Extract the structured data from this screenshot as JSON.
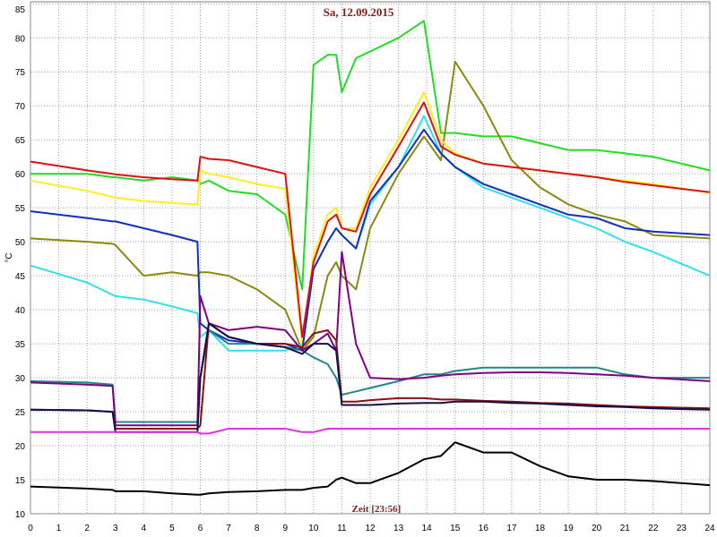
{
  "chart_data": {
    "type": "line",
    "title": "Sa, 12.09.2015",
    "ylabel": "°C",
    "xlabel": "Zeit [23:56]",
    "grid": true,
    "xlim": [
      0,
      24
    ],
    "xticks": [
      0,
      1,
      2,
      3,
      4,
      5,
      6,
      7,
      8,
      9,
      10,
      11,
      12,
      13,
      14,
      15,
      16,
      17,
      18,
      19,
      20,
      21,
      22,
      23,
      24
    ],
    "ylim": [
      10,
      85.3
    ],
    "yticks": [
      10,
      15,
      20,
      25,
      30,
      35,
      40,
      45,
      50,
      55,
      60,
      65,
      70,
      75,
      80,
      85
    ],
    "x": [
      0,
      2,
      2.9,
      3,
      4,
      5,
      5.9,
      6,
      6.3,
      7,
      8,
      9,
      9.6,
      10,
      10.5,
      10.8,
      11,
      11.5,
      12,
      13,
      13.9,
      14.5,
      15,
      16,
      17,
      18,
      19,
      20,
      21,
      22,
      24
    ],
    "series": [
      {
        "color": "#22dd22",
        "values": [
          60,
          60,
          59.5,
          59.5,
          59,
          59.5,
          59,
          58.5,
          59,
          57.5,
          57,
          54,
          43,
          76,
          77.5,
          77.5,
          72,
          77,
          78,
          80,
          82.5,
          66,
          66,
          65.5,
          65.5,
          64.5,
          63.5,
          63.5,
          63,
          62.5,
          60.5
        ]
      },
      {
        "color": "#8a8a10",
        "values": [
          50.5,
          50,
          49.7,
          49.5,
          45,
          45.5,
          45,
          45.5,
          45.5,
          45,
          43,
          40,
          34,
          36,
          45,
          47,
          45,
          43,
          52,
          60,
          65.5,
          62,
          76.5,
          70,
          62,
          58,
          55.5,
          54,
          53,
          51,
          50.5
        ]
      },
      {
        "color": "#30e0f0",
        "values": [
          46.5,
          44,
          42.2,
          42,
          41.5,
          40.5,
          39.5,
          36,
          37,
          34,
          34,
          34,
          35,
          46,
          50,
          52,
          51,
          49,
          55.5,
          61,
          68.5,
          63,
          61,
          58,
          56.5,
          55,
          53.5,
          52,
          50,
          48.5,
          45
        ]
      },
      {
        "color": "#ffee22",
        "values": [
          59,
          57.5,
          56.6,
          56.5,
          56,
          55.7,
          55.5,
          60.5,
          60,
          59.5,
          58.5,
          57.8,
          35,
          48,
          54,
          55,
          52,
          52,
          58,
          65,
          72,
          65,
          63,
          61.5,
          61,
          60.5,
          60,
          59.5,
          59,
          58.5,
          57.2
        ]
      },
      {
        "color": "#1030c0",
        "values": [
          54.5,
          53.5,
          53,
          53,
          52,
          51,
          50,
          38,
          37,
          35.5,
          35,
          35,
          34,
          46,
          50,
          52,
          51,
          49,
          56,
          61,
          66.5,
          63,
          61,
          58.5,
          57,
          55.5,
          54,
          53.5,
          52,
          51.5,
          51
        ]
      },
      {
        "color": "#dd1111",
        "values": [
          61.8,
          60.5,
          60,
          59.9,
          59.5,
          59.2,
          59,
          62.5,
          62.2,
          62,
          61,
          60,
          36,
          47,
          53,
          54,
          52,
          51.5,
          57,
          64,
          70.5,
          64,
          62.8,
          61.5,
          61,
          60.5,
          60,
          59.5,
          58.8,
          58.3,
          57.3
        ]
      },
      {
        "color": "#208888",
        "values": [
          29.5,
          29.3,
          29,
          23.5,
          23.5,
          23.5,
          23.5,
          30,
          37,
          35,
          35,
          34.5,
          34,
          33,
          32,
          30,
          27.5,
          28,
          28.5,
          29.5,
          30.5,
          30.5,
          31,
          31.5,
          31.5,
          31.5,
          31.5,
          31.5,
          30.5,
          30,
          30
        ]
      },
      {
        "color": "#800080",
        "values": [
          29.3,
          29,
          28.8,
          23,
          23,
          23,
          23,
          42,
          38,
          37,
          37.5,
          37,
          34,
          35,
          36.5,
          34,
          48.5,
          35,
          30,
          29.8,
          30,
          30.3,
          30.5,
          30.7,
          30.8,
          30.8,
          30.7,
          30.5,
          30.3,
          30,
          29.5
        ]
      },
      {
        "color": "#8b1010",
        "values": [
          25.3,
          25.2,
          25,
          22.5,
          22.5,
          22.5,
          22.5,
          23,
          38,
          36,
          35,
          35,
          34.5,
          36.5,
          37,
          35.5,
          26.5,
          26.5,
          26.7,
          27,
          27,
          26.8,
          26.8,
          26.6,
          26.5,
          26.3,
          26.2,
          26,
          25.8,
          25.7,
          25.5
        ]
      },
      {
        "color": "#10104a",
        "values": [
          25.3,
          25.2,
          25,
          22,
          22,
          22,
          22,
          30,
          38,
          36,
          35,
          34.5,
          33.5,
          35,
          35,
          34,
          26,
          26,
          26,
          26.2,
          26.3,
          26.3,
          26.5,
          26.5,
          26.3,
          26.2,
          26,
          25.8,
          25.7,
          25.5,
          25.3
        ]
      },
      {
        "color": "#e030e0",
        "values": [
          22,
          22,
          22,
          22,
          22,
          22,
          22,
          21.8,
          21.8,
          22.5,
          22.5,
          22.5,
          22,
          22,
          22.5,
          22.5,
          22.5,
          22.5,
          22.5,
          22.5,
          22.5,
          22.5,
          22.5,
          22.5,
          22.5,
          22.5,
          22.5,
          22.5,
          22.5,
          22.5,
          22.5
        ]
      },
      {
        "color": "#000000",
        "values": [
          14,
          13.7,
          13.5,
          13.3,
          13.3,
          13,
          12.8,
          12.8,
          13,
          13.2,
          13.3,
          13.5,
          13.5,
          13.8,
          14,
          15,
          15.3,
          14.5,
          14.5,
          16,
          18,
          18.5,
          20.5,
          19,
          19,
          17,
          15.5,
          15,
          15,
          14.8,
          14.2
        ]
      }
    ]
  }
}
